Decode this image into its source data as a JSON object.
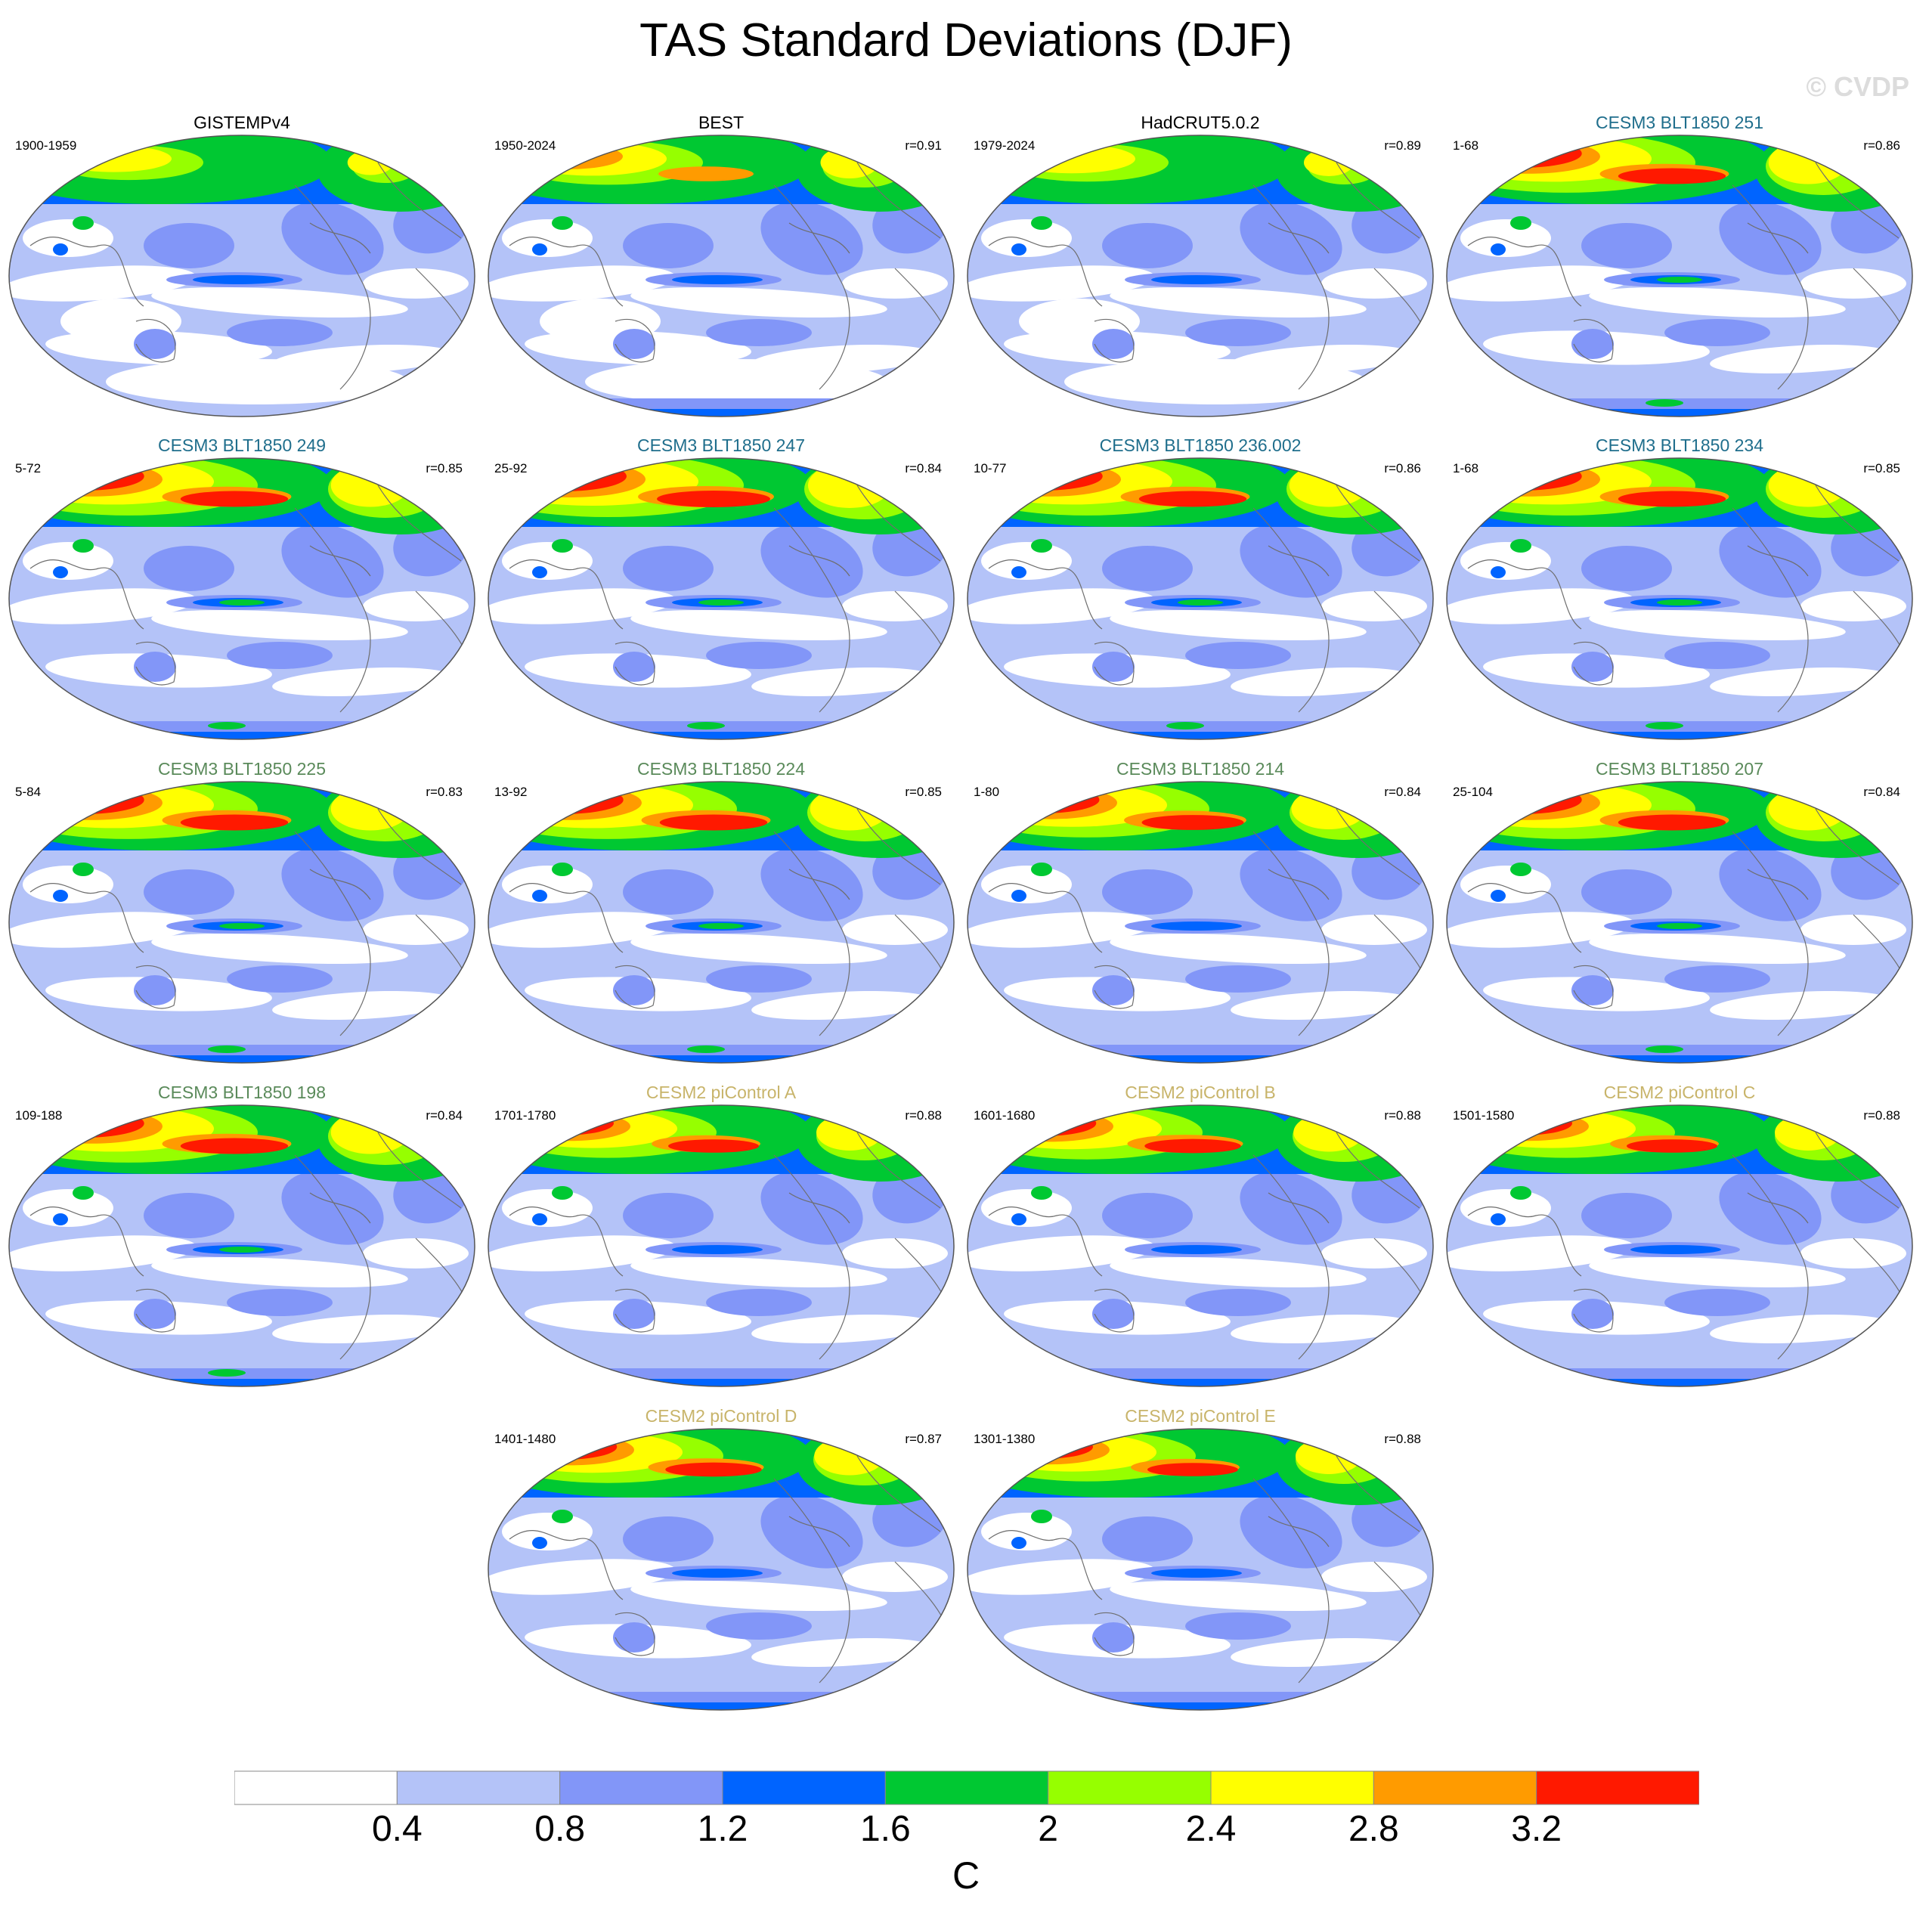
{
  "title": "TAS Standard Deviations (DJF)",
  "watermark": "© CVDP",
  "panels": [
    {
      "title": "GISTEMPv4",
      "period": "1900-1959",
      "corr": "",
      "title_color": "#000000",
      "intensity": 0.55,
      "obs": true
    },
    {
      "title": "BEST",
      "period": "1950-2024",
      "corr": "r=0.91",
      "title_color": "#000000",
      "intensity": 0.7,
      "obs": true
    },
    {
      "title": "HadCRUT5.0.2",
      "period": "1979-2024",
      "corr": "r=0.89",
      "title_color": "#000000",
      "intensity": 0.6,
      "obs": true
    },
    {
      "title": "CESM3 BLT1850 251",
      "period": "1-68",
      "corr": "r=0.86",
      "title_color": "#1f6e8c",
      "intensity": 0.95,
      "obs": false
    },
    {
      "title": "CESM3 BLT1850 249",
      "period": "5-72",
      "corr": "r=0.85",
      "title_color": "#1f6e8c",
      "intensity": 0.95,
      "obs": false
    },
    {
      "title": "CESM3 BLT1850 247",
      "period": "25-92",
      "corr": "r=0.84",
      "title_color": "#1f6e8c",
      "intensity": 1.0,
      "obs": false
    },
    {
      "title": "CESM3 BLT1850 236.002",
      "period": "10-77",
      "corr": "r=0.86",
      "title_color": "#1f6e8c",
      "intensity": 0.95,
      "obs": false
    },
    {
      "title": "CESM3 BLT1850 234",
      "period": "1-68",
      "corr": "r=0.85",
      "title_color": "#1f6e8c",
      "intensity": 0.95,
      "obs": false
    },
    {
      "title": "CESM3 BLT1850 225",
      "period": "5-84",
      "corr": "r=0.83",
      "title_color": "#5a8a5a",
      "intensity": 0.95,
      "obs": false
    },
    {
      "title": "CESM3 BLT1850 224",
      "period": "13-92",
      "corr": "r=0.85",
      "title_color": "#5a8a5a",
      "intensity": 0.95,
      "obs": false
    },
    {
      "title": "CESM3 BLT1850 214",
      "period": "1-80",
      "corr": "r=0.84",
      "title_color": "#5a8a5a",
      "intensity": 0.9,
      "obs": false
    },
    {
      "title": "CESM3 BLT1850 207",
      "period": "25-104",
      "corr": "r=0.84",
      "title_color": "#5a8a5a",
      "intensity": 0.95,
      "obs": false
    },
    {
      "title": "CESM3 BLT1850 198",
      "period": "109-188",
      "corr": "r=0.84",
      "title_color": "#5a8a5a",
      "intensity": 0.95,
      "obs": false
    },
    {
      "title": "CESM2 piControl A",
      "period": "1701-1780",
      "corr": "r=0.88",
      "title_color": "#c8b46a",
      "intensity": 0.8,
      "obs": false
    },
    {
      "title": "CESM2 piControl B",
      "period": "1601-1680",
      "corr": "r=0.88",
      "title_color": "#c8b46a",
      "intensity": 0.85,
      "obs": false
    },
    {
      "title": "CESM2 piControl C",
      "period": "1501-1580",
      "corr": "r=0.88",
      "title_color": "#c8b46a",
      "intensity": 0.8,
      "obs": false
    },
    {
      "title": "CESM2 piControl D",
      "period": "1401-1480",
      "corr": "r=0.87",
      "title_color": "#c8b46a",
      "intensity": 0.85,
      "obs": false
    },
    {
      "title": "CESM2 piControl E",
      "period": "1301-1380",
      "corr": "r=0.88",
      "title_color": "#c8b46a",
      "intensity": 0.8,
      "obs": false
    }
  ],
  "colorbar": {
    "colors": [
      "#ffffff",
      "#b4c3f8",
      "#8296f8",
      "#0064ff",
      "#00c832",
      "#96ff00",
      "#ffff00",
      "#ff9b00",
      "#ff1900"
    ],
    "ticks": [
      "0.4",
      "0.8",
      "1.2",
      "1.6",
      "2",
      "2.4",
      "2.8",
      "3.2"
    ],
    "unit": "C"
  }
}
